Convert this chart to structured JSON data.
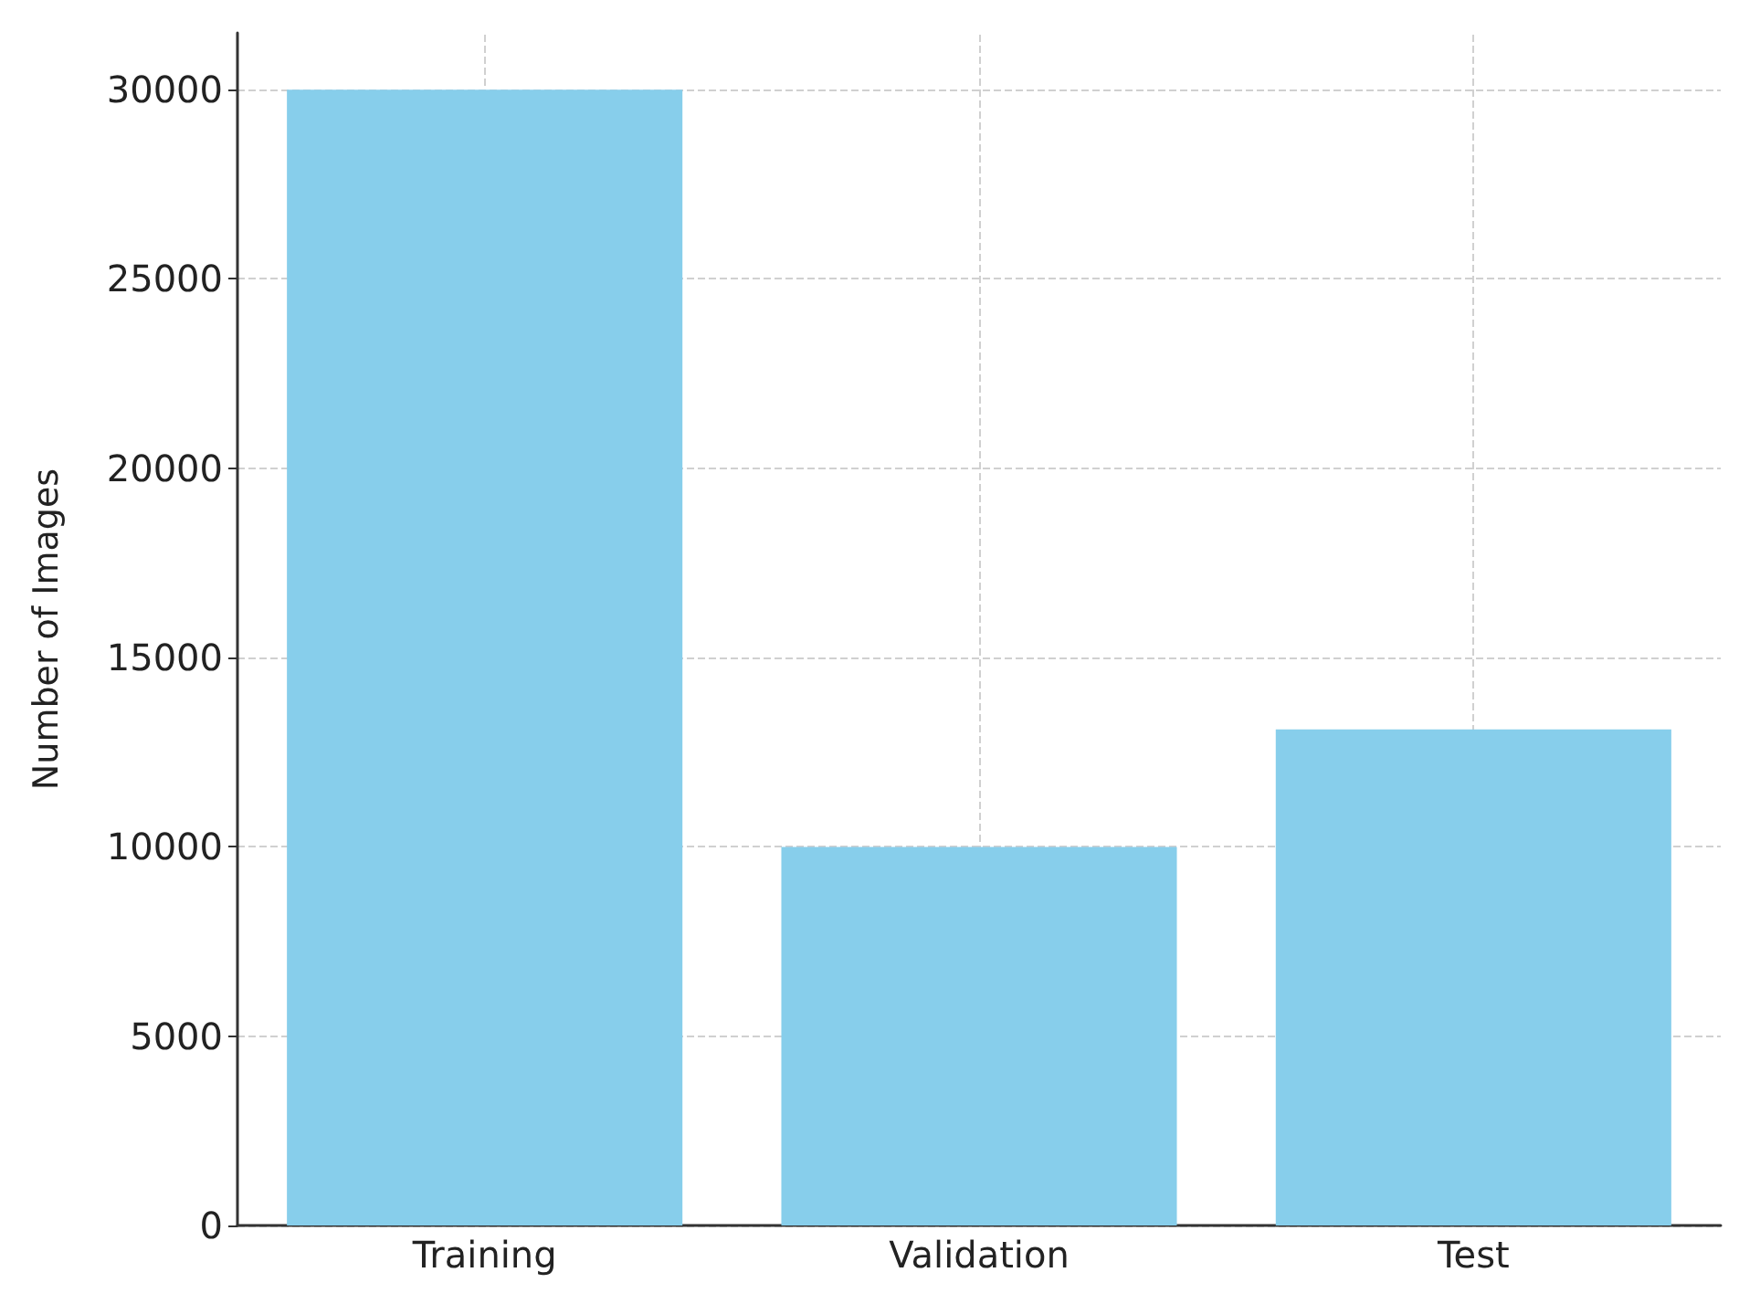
{
  "chart_data": {
    "type": "bar",
    "ylabel": "Number of Images",
    "categories": [
      "Training",
      "Validation",
      "Test"
    ],
    "values": [
      30000,
      10000,
      13100
    ],
    "color": "#87ceeb",
    "ylim": [
      0,
      31500
    ],
    "yticks": [
      0,
      5000,
      10000,
      15000,
      20000,
      25000,
      30000
    ],
    "grid": true
  }
}
